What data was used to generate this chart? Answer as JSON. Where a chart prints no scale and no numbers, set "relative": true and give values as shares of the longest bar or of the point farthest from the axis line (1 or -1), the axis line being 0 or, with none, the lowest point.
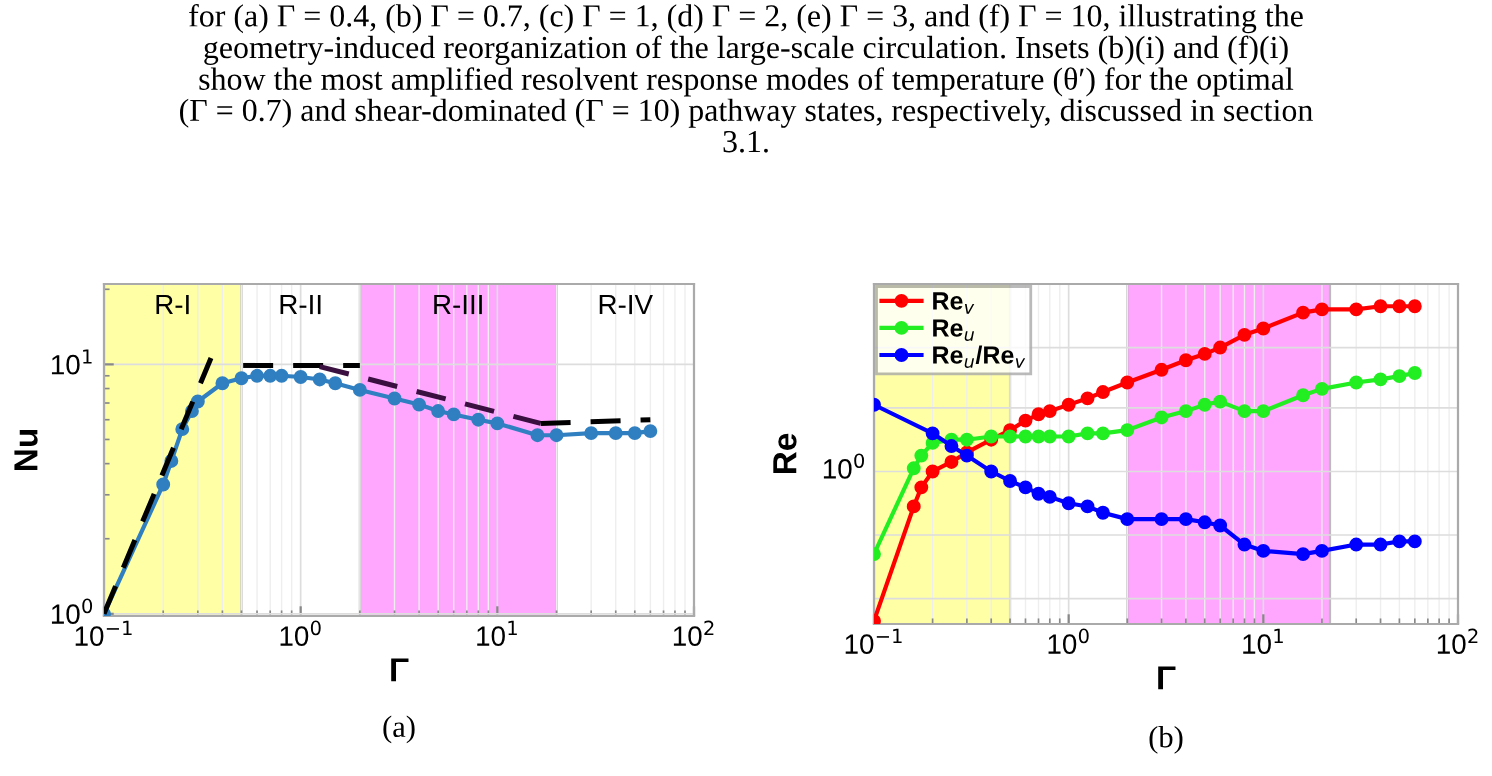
{
  "chart_data": [
    {
      "type": "line",
      "xlabel": "Γ",
      "ylabel": "Nu",
      "log": "xy",
      "grid": true,
      "marker": "circle",
      "line_style": "solid",
      "xlim": [
        0.1,
        100
      ],
      "ylim": [
        0.98,
        21
      ],
      "xticks": [
        {
          "value": 0.1,
          "label": "10$^{−1}$"
        },
        {
          "value": 1,
          "label": "10$^{0}$"
        },
        {
          "value": 10,
          "label": "10$^{1}$"
        },
        {
          "value": 100,
          "label": "10$^{2}$"
        }
      ],
      "yticks": [
        {
          "value": 1,
          "label": "10$^{0}$"
        },
        {
          "value": 10,
          "label": "10$^{1}$"
        }
      ],
      "bands": [
        {
          "axis": "x",
          "from": 0.1,
          "to": 0.5,
          "label": "R-I",
          "color": "#ffffa6"
        },
        {
          "axis": "x",
          "from": 2,
          "to": 20,
          "label": "R-III",
          "color": "#ffa6ff"
        }
      ],
      "series": [
        {
          "color": "#2f7fc1",
          "x": [
            0.1,
            0.2,
            0.22,
            0.25,
            0.28,
            0.3,
            0.4,
            0.5,
            0.6,
            0.7,
            0.8,
            1,
            1.25,
            1.5,
            2,
            3,
            4,
            5,
            6,
            8,
            10,
            16,
            20,
            30,
            40,
            50,
            60
          ],
          "values": [
            1.0,
            3.3,
            4.1,
            5.5,
            6.5,
            7.1,
            8.4,
            8.8,
            9.0,
            9.0,
            9.0,
            8.9,
            8.7,
            8.4,
            7.9,
            7.3,
            6.9,
            6.5,
            6.3,
            6.0,
            5.8,
            5.2,
            5.2,
            5.3,
            5.3,
            5.3,
            5.4
          ]
        },
        {
          "type": "line",
          "color": "#000000",
          "line_style": "dashed",
          "marker": "none",
          "x": [
            0.1,
            0.35
          ],
          "values": [
            1.0,
            10.6
          ]
        },
        {
          "type": "line",
          "color": "#000000",
          "line_style": "dashed",
          "marker": "none",
          "x": [
            0.51,
            2.0
          ],
          "values": [
            9.9,
            9.9
          ]
        },
        {
          "type": "line",
          "color": "#3a1040",
          "line_style": "dashed",
          "marker": "none",
          "x": [
            1.25,
            16.6
          ],
          "values": [
            9.8,
            5.8
          ]
        },
        {
          "type": "line",
          "color": "#000000",
          "line_style": "dashed",
          "marker": "none",
          "x": [
            16.6,
            60
          ],
          "values": [
            5.8,
            6.0
          ]
        }
      ],
      "annotations": [
        "R-II",
        "R-IV",
        "for (a) Γ = 0.4, (b) Γ = 0.7, (c) Γ = 1, (d) Γ = 2, (e) Γ = 3, and (f) Γ = 10, illustrating the\ngeometry-induced reorganization of the large-scale circulation. Insets (b)(i) and (f)(i)\nshow the most amplified resolvent response modes of temperature (θ′) for the optimal\n(Γ = 0.7) and shear-dominated (Γ = 10) pathway states, respectively, discussed in section\n3.1.",
        "(a)"
      ]
    },
    {
      "type": "line",
      "xlabel": "Γ",
      "ylabel": "Re",
      "log": "x",
      "relative": true,
      "grid": true,
      "marker": "circle",
      "line_style": "solid",
      "legend": "top left",
      "xlim": [
        0.1,
        100
      ],
      "xticks": [
        {
          "value": 0.1,
          "label": "10$^{−1}$"
        },
        {
          "value": 1,
          "label": "10$^{0}$"
        },
        {
          "value": 10,
          "label": "10$^{1}$"
        },
        {
          "value": 100,
          "label": "10$^{2}$"
        }
      ],
      "bands": [
        {
          "axis": "x",
          "from": 0.1,
          "to": 0.5,
          "color": "#ffffa6"
        },
        {
          "axis": "x",
          "from": 2,
          "to": 22,
          "color": "#ffa6ff"
        }
      ],
      "series": [
        {
          "name": "Re$_{v}$",
          "color": "#ff0000",
          "x": [
            0.1,
            0.16,
            0.175,
            0.2,
            0.25,
            0.3,
            0.4,
            0.5,
            0.6,
            0.7,
            0.8,
            1,
            1.25,
            1.5,
            2,
            3,
            4,
            5,
            6,
            8,
            10,
            16,
            20,
            30,
            40,
            50,
            60
          ],
          "values": [
            0.01,
            0.37,
            0.43,
            0.48,
            0.51,
            0.54,
            0.58,
            0.61,
            0.64,
            0.66,
            0.67,
            0.69,
            0.71,
            0.73,
            0.76,
            0.8,
            0.83,
            0.85,
            0.87,
            0.91,
            0.93,
            0.98,
            0.99,
            0.99,
            1.0,
            1.0,
            1.0
          ]
        },
        {
          "name": "Re$_{u}$",
          "color": "#22ee22",
          "x": [
            0.1,
            0.16,
            0.175,
            0.2,
            0.25,
            0.3,
            0.4,
            0.5,
            0.6,
            0.7,
            0.8,
            1,
            1.25,
            1.5,
            2,
            3,
            4,
            5,
            6,
            8,
            10,
            16,
            20,
            30,
            40,
            50,
            60
          ],
          "values": [
            0.22,
            0.49,
            0.53,
            0.57,
            0.58,
            0.58,
            0.59,
            0.59,
            0.59,
            0.59,
            0.59,
            0.59,
            0.6,
            0.6,
            0.61,
            0.65,
            0.67,
            0.69,
            0.7,
            0.67,
            0.67,
            0.72,
            0.74,
            0.76,
            0.77,
            0.78,
            0.79
          ]
        },
        {
          "name": "Re$_{u}$/Re$_{v}$",
          "color": "#0000ff",
          "x": [
            0.1,
            0.2,
            0.25,
            0.3,
            0.4,
            0.5,
            0.6,
            0.7,
            0.8,
            1,
            1.25,
            1.5,
            2,
            3,
            4,
            5,
            6,
            8,
            10,
            16,
            20,
            30,
            40,
            50,
            60
          ],
          "values": [
            0.69,
            0.6,
            0.56,
            0.53,
            0.48,
            0.45,
            0.43,
            0.41,
            0.4,
            0.38,
            0.37,
            0.35,
            0.33,
            0.33,
            0.33,
            0.32,
            0.31,
            0.25,
            0.23,
            0.22,
            0.23,
            0.25,
            0.25,
            0.26,
            0.26
          ]
        }
      ],
      "annotations": [
        {
          "text": "10$^{0}$",
          "x": 0.1,
          "y": 0.48
        },
        "(b)"
      ]
    }
  ]
}
